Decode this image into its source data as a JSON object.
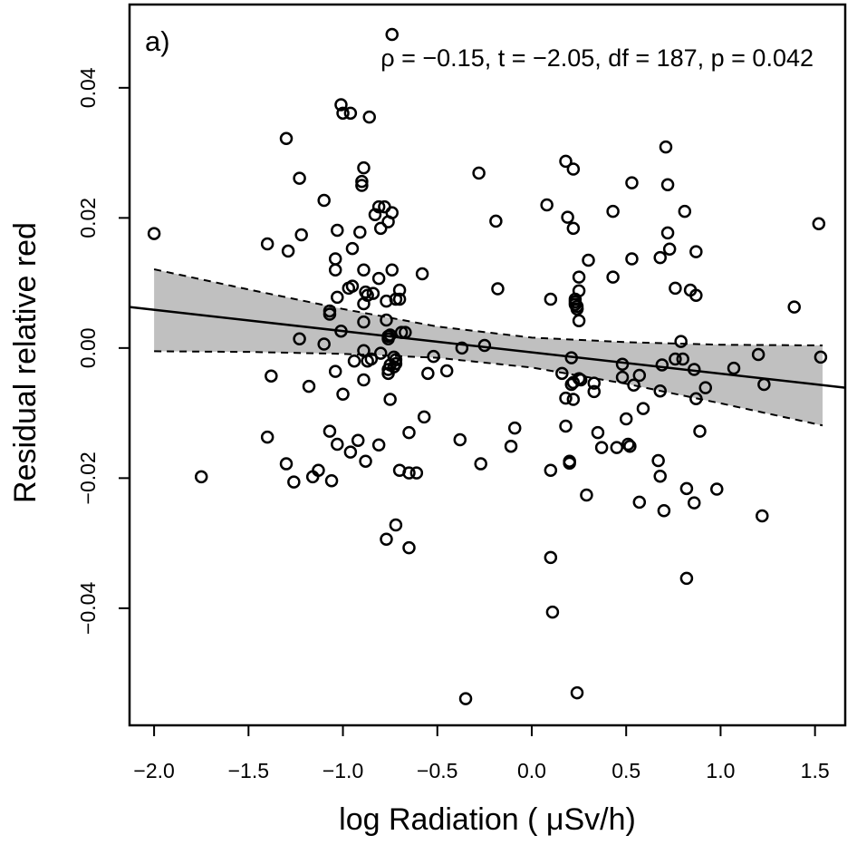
{
  "chart_data": {
    "type": "scatter",
    "panel_label": "a)",
    "annotation": "ρ = −0.15, t = −2.05, df = 187, p = 0.042",
    "xlabel": "log Radiation ( μSv/h)",
    "ylabel": "Residual relative red",
    "xlim": [
      -2.13,
      1.66
    ],
    "ylim": [
      -0.058,
      0.0528
    ],
    "xticks": [
      {
        "value": -2,
        "label": "−2.0"
      },
      {
        "value": -1.5,
        "label": "−1.5"
      },
      {
        "value": -1,
        "label": "−1.0"
      },
      {
        "value": -0.5,
        "label": "−0.5"
      },
      {
        "value": 0,
        "label": "0.0"
      },
      0.5,
      {
        "value": 1,
        "label": "1.0"
      },
      1.5
    ],
    "yticks": [
      {
        "value": -0.04,
        "label": "−0.04"
      },
      {
        "value": -0.02,
        "label": "−0.02"
      },
      {
        "value": 0,
        "label": "0.00"
      },
      0.02,
      0.04
    ],
    "color": "#000000",
    "band_color": "#c0c0c0",
    "fit": {
      "x": [
        -2.13,
        1.66
      ],
      "y": [
        0.0063,
        -0.0061
      ]
    },
    "band": {
      "x": [
        -2,
        -1.5,
        -1,
        -0.5,
        0,
        0.5,
        1,
        1.54
      ],
      "upper": [
        0.0121,
        0.009,
        0.006,
        0.0033,
        0.0016,
        0.0009,
        0.0005,
        0.0004
      ],
      "lower": [
        -0.0005,
        -0.0006,
        -0.0009,
        -0.0015,
        -0.003,
        -0.0055,
        -0.0085,
        -0.0119
      ]
    },
    "x": [
      -2.0,
      -1.75,
      -1.4,
      -1.38,
      -1.4,
      -1.3,
      -1.29,
      -1.3,
      -1.26,
      -1.23,
      -1.22,
      -1.23,
      -1.18,
      -1.16,
      -1.13,
      -1.1,
      -1.1,
      -1.07,
      -1.07,
      -1.07,
      -1.06,
      -1.03,
      -1.04,
      -1.04,
      -1.03,
      -1.04,
      -1.01,
      -1.0,
      -1.03,
      -1.01,
      -1.0,
      -0.96,
      -0.97,
      -0.95,
      -0.96,
      -0.95,
      -0.94,
      -0.92,
      -0.91,
      -0.89,
      -0.9,
      -0.9,
      -0.89,
      -0.89,
      -0.89,
      -0.89,
      -0.89,
      -0.88,
      -0.88,
      -0.87,
      -0.87,
      -0.86,
      -0.85,
      -0.84,
      -0.83,
      -0.81,
      -0.8,
      -0.81,
      -0.81,
      -0.8,
      -0.78,
      -0.77,
      -0.77,
      -0.76,
      -0.76,
      -0.76,
      -0.75,
      -0.76,
      -0.77,
      -0.76,
      -0.75,
      -0.74,
      -0.74,
      -0.75,
      -0.74,
      -0.73,
      -0.72,
      -0.73,
      -0.72,
      -0.72,
      -0.72,
      -0.7,
      -0.7,
      -0.7,
      -0.69,
      -0.67,
      -0.65,
      -0.65,
      -0.65,
      -0.61,
      -0.58,
      -0.57,
      -0.55,
      -0.52,
      -0.45,
      -0.38,
      -0.37,
      -0.35,
      -0.28,
      -0.27,
      -0.25,
      -0.19,
      -0.18,
      -0.11,
      -0.09,
      0.08,
      0.1,
      0.1,
      0.1,
      0.11,
      0.16,
      0.18,
      0.18,
      0.18,
      0.19,
      0.2,
      0.2,
      0.21,
      0.21,
      0.22,
      0.22,
      0.22,
      0.22,
      0.23,
      0.23,
      0.23,
      0.24,
      0.24,
      0.24,
      0.25,
      0.25,
      0.25,
      0.24,
      0.25,
      0.26,
      0.3,
      0.29,
      0.33,
      0.33,
      0.35,
      0.37,
      0.43,
      0.43,
      0.45,
      0.48,
      0.48,
      0.5,
      0.51,
      0.52,
      0.53,
      0.53,
      0.54,
      0.57,
      0.59,
      0.57,
      0.67,
      0.68,
      0.68,
      0.68,
      0.69,
      0.71,
      0.72,
      0.72,
      0.73,
      0.7,
      0.76,
      0.76,
      0.79,
      0.8,
      0.81,
      0.82,
      0.82,
      0.84,
      0.86,
      0.86,
      0.87,
      0.87,
      0.87,
      0.89,
      0.92,
      0.98,
      1.07,
      1.2,
      1.22,
      1.23,
      1.39,
      1.52,
      1.53
    ],
    "values": [
      0.0176,
      -0.0198,
      0.016,
      -0.0043,
      -0.0137,
      0.0322,
      0.0149,
      -0.0178,
      -0.0206,
      0.0261,
      0.0174,
      0.0014,
      -0.0059,
      -0.0198,
      -0.0188,
      0.0227,
      0.0006,
      0.0052,
      0.0057,
      -0.0128,
      -0.0204,
      0.0181,
      0.0137,
      0.012,
      0.0078,
      -0.0036,
      0.0026,
      -0.0071,
      -0.0148,
      0.0374,
      0.0361,
      0.0361,
      0.0092,
      0.0095,
      -0.016,
      0.0153,
      -0.002,
      -0.0142,
      0.0178,
      0.0277,
      0.0256,
      0.025,
      0.0068,
      0.004,
      -0.0004,
      0.012,
      -0.0049,
      -0.0174,
      0.0086,
      -0.002,
      0.0081,
      0.0355,
      -0.0017,
      0.0084,
      0.0205,
      0.0217,
      0.0184,
      0.0107,
      -0.0149,
      -0.0008,
      0.0217,
      0.0072,
      0.0043,
      0.0014,
      0.0194,
      0.0018,
      0.002,
      -0.0039,
      -0.0294,
      -0.0033,
      -0.0079,
      0.0482,
      0.0208,
      -0.0026,
      0.012,
      -0.0029,
      -0.0272,
      -0.0014,
      -0.0018,
      -0.0024,
      0.0075,
      0.0089,
      -0.0188,
      0.0075,
      0.0024,
      0.0024,
      -0.0192,
      -0.0307,
      -0.013,
      -0.0192,
      0.0114,
      -0.0106,
      -0.0039,
      -0.0013,
      -0.0035,
      -0.0141,
      0,
      -0.0539,
      0.0269,
      -0.0178,
      0.0004,
      0.0195,
      0.0091,
      -0.0151,
      -0.0123,
      0.022,
      0.0075,
      -0.0322,
      -0.0188,
      -0.0406,
      -0.0039,
      0.0287,
      -0.012,
      -0.0077,
      0.0201,
      -0.0174,
      -0.0177,
      -0.0015,
      -0.0056,
      -0.0053,
      0.0275,
      0.0184,
      -0.0079,
      0.0067,
      0.0075,
      0.0071,
      0.0064,
      0.006,
      0.006,
      0.0042,
      0.0109,
      0.0088,
      -0.053,
      -0.0047,
      -0.0049,
      0.0135,
      -0.0226,
      -0.0054,
      -0.0067,
      -0.013,
      -0.0153,
      0.021,
      0.0109,
      -0.0153,
      -0.0025,
      -0.0045,
      -0.0109,
      -0.0148,
      -0.0151,
      0.0137,
      0.0254,
      -0.0057,
      -0.0042,
      -0.0093,
      -0.0237,
      -0.0173,
      -0.0197,
      -0.0066,
      0.0139,
      -0.0026,
      0.0309,
      0.0251,
      0.0177,
      0.0152,
      -0.025,
      0.0092,
      -0.0017,
      0.001,
      -0.0017,
      0.021,
      -0.0216,
      -0.0354,
      0.0089,
      -0.0033,
      -0.0238,
      0.0081,
      0.0148,
      -0.0078,
      -0.0128,
      -0.0061,
      -0.0217,
      -0.0031,
      -0.001,
      -0.0258,
      -0.0056,
      0.0063,
      0.0191,
      -0.0014
    ]
  }
}
